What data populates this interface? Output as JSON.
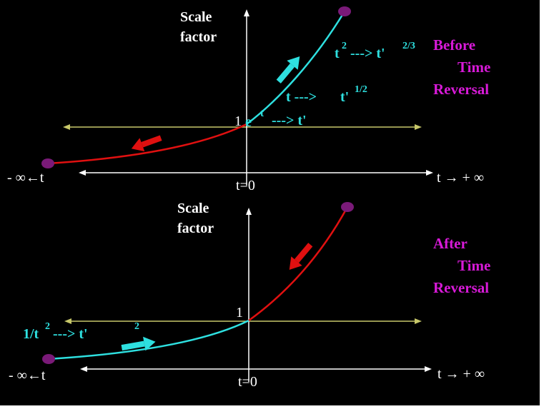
{
  "colors": {
    "background": "#000000",
    "axis": "#ffffff",
    "guide_line": "#c8c86a",
    "curve_red": "#e01010",
    "curve_cyan": "#2ee0e0",
    "endpoint": "#7a1a78",
    "label_magenta": "#d81ad8"
  },
  "top_panel": {
    "y_axis_title_line1": "Scale",
    "y_axis_title_line2": "factor",
    "one_label": "1",
    "origin_label": "t=0",
    "left_label": "- ∞←t",
    "right_label": "t → + ∞",
    "status_line1": "Before",
    "status_line2": "Time",
    "status_line3": "Reversal",
    "eq_exp": {
      "base": "e",
      "sup": "t",
      "arrow": "---> t'"
    },
    "eq_sqrt": {
      "lhs": "t --->",
      "rhs": "t'",
      "sup": "1/2"
    },
    "eq_pow": {
      "lhs": "t",
      "lhs_sup": "2",
      "arrow": "---> t'",
      "rhs_sup": "2/3"
    }
  },
  "bottom_panel": {
    "y_axis_title_line1": "Scale",
    "y_axis_title_line2": "factor",
    "one_label": "1",
    "origin_label": "t=0",
    "left_label": "- ∞←t",
    "right_label": "t → + ∞",
    "status_line1": "After",
    "status_line2": "Time",
    "status_line3": "Reversal",
    "eq_inv": {
      "lhs": "1/t",
      "lhs_sup": "2",
      "arrow": "---> t'",
      "rhs_sup": "2"
    }
  }
}
